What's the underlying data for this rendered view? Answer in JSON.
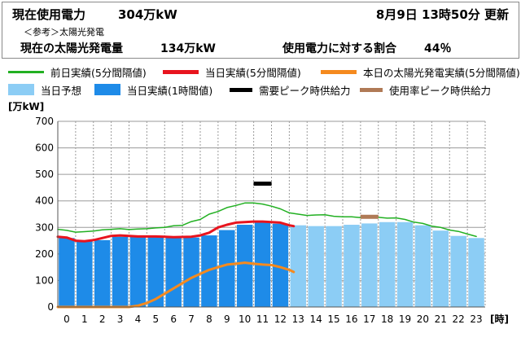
{
  "header": {
    "current_label": "現在使用電力",
    "current_value": "304万kW",
    "date_time": "8月9日 13時50分 更新",
    "reference_note": "＜参考＞太陽光発電",
    "solar_label": "現在の太陽光発電量",
    "solar_value": "134万kW",
    "ratio_label": "使用電力に対する割合",
    "ratio_value": "44％"
  },
  "legend": {
    "prev_day": "前日実績(5分間隔値)",
    "today_actual_5min": "当日実績(5分間隔値)",
    "solar_today": "本日の太陽光発電実績(5分間隔値)",
    "forecast": "当日予想",
    "today_actual_hourly": "当日実績(1時間値)",
    "peak_demand": "需要ピーク時供給力",
    "peak_usage": "使用率ピーク時供給力"
  },
  "colors": {
    "prev_day": "#22b022",
    "today_actual_5min": "#e8141e",
    "solar": "#f58a1e",
    "forecast": "#8ccdf5",
    "today_actual_hourly": "#1e8be8",
    "peak_demand": "#000000",
    "peak_usage": "#b07a56"
  },
  "chart_data": {
    "type": "bar",
    "ylabel": "[万kW]",
    "xlabel": "[時]",
    "ylim": [
      0,
      700
    ],
    "yticks": [
      "0",
      "100",
      "200",
      "300",
      "400",
      "500",
      "600",
      "700"
    ],
    "categories": [
      "0",
      "1",
      "2",
      "3",
      "4",
      "5",
      "6",
      "7",
      "8",
      "9",
      "10",
      "11",
      "12",
      "13",
      "14",
      "15",
      "16",
      "17",
      "18",
      "19",
      "20",
      "21",
      "22",
      "23"
    ],
    "grid": true,
    "actual_hourly": [
      260,
      248,
      252,
      265,
      268,
      265,
      262,
      262,
      270,
      290,
      310,
      318,
      314
    ],
    "forecast": [
      null,
      null,
      null,
      null,
      null,
      null,
      null,
      null,
      null,
      null,
      null,
      null,
      null,
      308,
      305,
      305,
      310,
      315,
      320,
      320,
      308,
      288,
      268,
      260
    ],
    "prev_day_5min": {
      "x": [
        0,
        0.5,
        1,
        1.5,
        2,
        2.5,
        3,
        3.5,
        4,
        4.5,
        5,
        5.5,
        6,
        6.5,
        7,
        7.5,
        8,
        8.5,
        9,
        9.5,
        10,
        10.5,
        11,
        11.5,
        12,
        12.5,
        13,
        13.5,
        14,
        14.5,
        15,
        15.5,
        16,
        16.5,
        17,
        17.5,
        18,
        18.5,
        19,
        19.5,
        20,
        20.5,
        21,
        21.5,
        22,
        22.5,
        23,
        23.5
      ],
      "y": [
        293,
        289,
        282,
        284,
        286,
        291,
        293,
        295,
        292,
        294,
        295,
        298,
        300,
        306,
        308,
        322,
        330,
        350,
        360,
        375,
        383,
        392,
        392,
        388,
        380,
        370,
        355,
        350,
        345,
        347,
        348,
        342,
        340,
        340,
        337,
        338,
        338,
        335,
        336,
        330,
        320,
        315,
        305,
        300,
        290,
        285,
        275,
        266
      ]
    },
    "today_5min": {
      "x": [
        0,
        0.5,
        1,
        1.5,
        2,
        2.5,
        3,
        3.5,
        4,
        4.5,
        5,
        5.5,
        6,
        6.5,
        7,
        7.5,
        8,
        8.5,
        9,
        9.5,
        10,
        10.5,
        11,
        11.5,
        12,
        12.5,
        13,
        13.25
      ],
      "y": [
        265,
        262,
        250,
        248,
        252,
        260,
        268,
        270,
        268,
        266,
        266,
        266,
        265,
        263,
        264,
        265,
        270,
        280,
        300,
        310,
        318,
        320,
        322,
        322,
        320,
        318,
        308,
        305
      ]
    },
    "solar_5min": {
      "x": [
        0,
        1,
        2,
        3,
        4,
        4.5,
        5,
        5.5,
        6,
        6.5,
        7,
        7.5,
        8,
        8.5,
        9,
        9.5,
        10,
        10.5,
        11,
        11.5,
        12,
        12.5,
        13,
        13.25
      ],
      "y": [
        0,
        0,
        0,
        0,
        0,
        5,
        15,
        30,
        50,
        70,
        90,
        110,
        125,
        140,
        150,
        160,
        163,
        167,
        163,
        160,
        158,
        150,
        140,
        132
      ]
    },
    "peak_demand_supply": {
      "hour": 11,
      "value": 465
    },
    "peak_usage_supply": {
      "hour": 17,
      "value": 340
    }
  }
}
